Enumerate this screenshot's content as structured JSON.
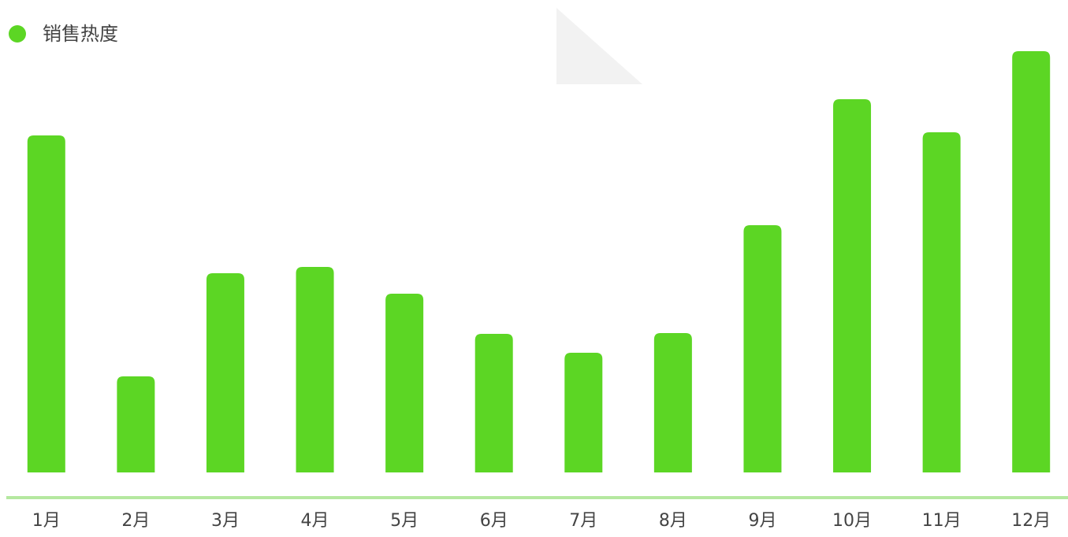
{
  "chart_data": {
    "type": "bar",
    "legend": "销售热度",
    "categories": [
      "1月",
      "2月",
      "3月",
      "4月",
      "5月",
      "6月",
      "7月",
      "8月",
      "9月",
      "10月",
      "11月",
      "12月"
    ],
    "values": [
      428,
      122,
      253,
      261,
      227,
      176,
      152,
      177,
      314,
      474,
      432,
      535
    ],
    "color": "#5cd624",
    "ylim": [
      0,
      560
    ],
    "axis_color": "#b5e8a0"
  }
}
